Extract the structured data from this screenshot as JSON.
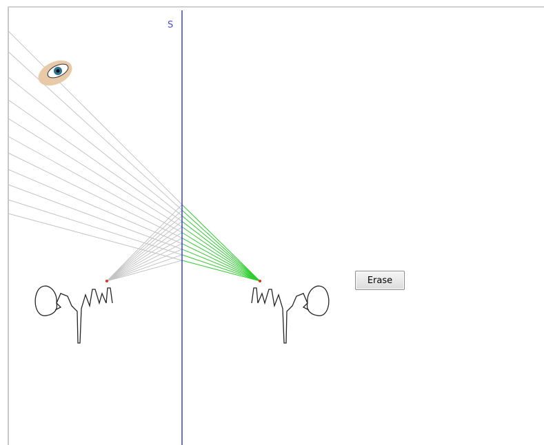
{
  "mirror_label": "S",
  "erase_button": "Erase"
}
